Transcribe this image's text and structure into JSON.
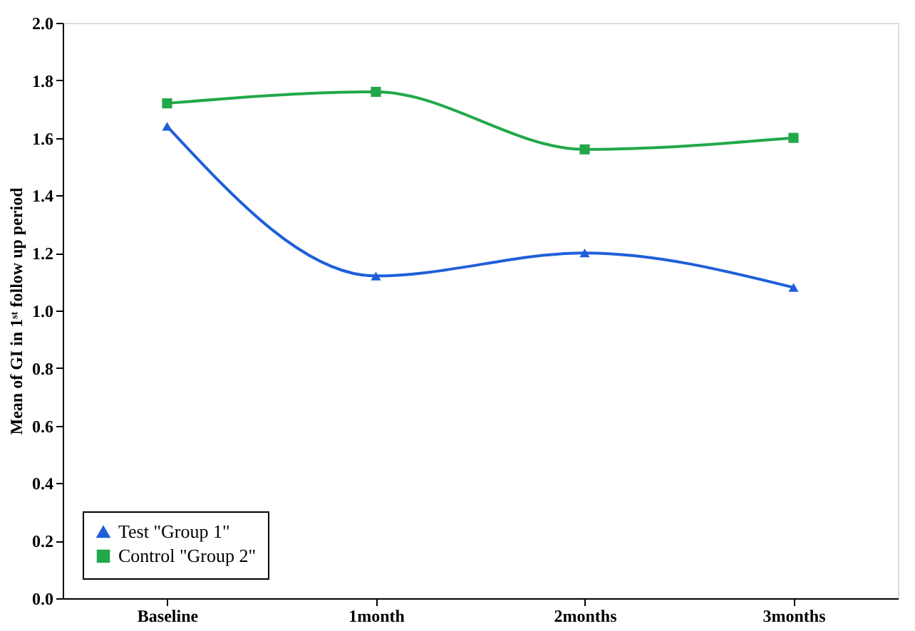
{
  "chart_data": {
    "type": "line",
    "ylabel": "Mean of GI in 1ˢᵗ follow up period",
    "categories": [
      "Baseline",
      "1month",
      "2months",
      "3months"
    ],
    "series": [
      {
        "name": "Test \"Group 1\"",
        "color": "#1f5fd9",
        "marker": "triangle",
        "values": [
          1.64,
          1.12,
          1.2,
          1.08
        ]
      },
      {
        "name": "Control \"Group 2\"",
        "color": "#22a84a",
        "marker": "square",
        "values": [
          1.72,
          1.76,
          1.56,
          1.6
        ]
      }
    ],
    "ylim": [
      0,
      2.0
    ],
    "yticks": [
      {
        "value": 0,
        "label": "0.0"
      },
      {
        "value": 0.2,
        "label": "0.2"
      },
      {
        "value": 0.4,
        "label": "0.4"
      },
      {
        "value": 0.6,
        "label": "0.6"
      },
      {
        "value": 0.8,
        "label": "0.8"
      },
      {
        "value": 1.0,
        "label": "1.0"
      },
      {
        "value": 1.2,
        "label": "1.2"
      },
      {
        "value": 1.4,
        "label": "1.4"
      },
      {
        "value": 1.6,
        "label": "1.6"
      },
      {
        "value": 1.8,
        "label": "1.8"
      },
      {
        "value": 2.0,
        "label": "2.0"
      }
    ],
    "grid": false,
    "legend": "bottom left",
    "line_style": "solid"
  }
}
